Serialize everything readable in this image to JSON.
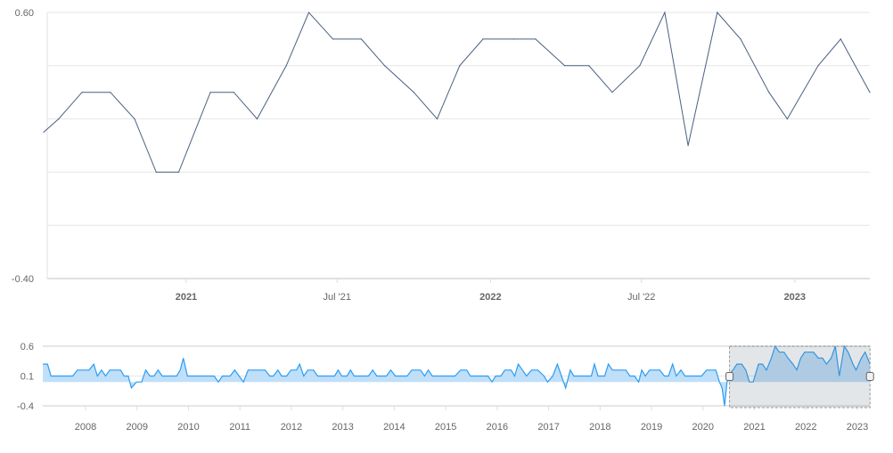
{
  "chart_data": [
    {
      "type": "line",
      "title": "",
      "xlabel": "",
      "ylabel": "",
      "ylim": [
        -0.4,
        0.6
      ],
      "xlim": [
        "2020-07-14",
        "2023-04-01"
      ],
      "grid": true,
      "ytick_labels": [
        "0.60",
        "-0.40"
      ],
      "ytick_values": [
        0.6,
        -0.4
      ],
      "grid_values": [
        0.6,
        0.4,
        0.2,
        0.0,
        -0.2,
        -0.4
      ],
      "xticks": [
        {
          "date": "2021-01-01",
          "label": "2021",
          "bold": true
        },
        {
          "date": "2021-07-01",
          "label": "Jul '21",
          "bold": false
        },
        {
          "date": "2022-01-01",
          "label": "2022",
          "bold": true
        },
        {
          "date": "2022-07-01",
          "label": "Jul '22",
          "bold": false
        },
        {
          "date": "2023-01-01",
          "label": "2023",
          "bold": true
        }
      ],
      "line_color": "#4a5f80",
      "series": [
        {
          "x": [
            "2020-07-14",
            "2020-08-01",
            "2020-08-29",
            "2020-10-02",
            "2020-10-31",
            "2020-11-26",
            "2020-12-23",
            "2021-01-30",
            "2021-02-27",
            "2021-03-27",
            "2021-05-01",
            "2021-05-28",
            "2021-06-26",
            "2021-07-30",
            "2021-08-27",
            "2021-10-01",
            "2021-10-29",
            "2021-11-25",
            "2021-12-23",
            "2022-01-29",
            "2022-02-24",
            "2022-03-31",
            "2022-04-29",
            "2022-05-27",
            "2022-06-29",
            "2022-07-29",
            "2022-08-26",
            "2022-09-30",
            "2022-10-28",
            "2022-12-01",
            "2022-12-23",
            "2023-01-29",
            "2023-02-25",
            "2023-04-01"
          ],
          "y": [
            0.15,
            0.2,
            0.3,
            0.3,
            0.2,
            0.0,
            0.0,
            0.3,
            0.3,
            0.2,
            0.4,
            0.6,
            0.5,
            0.5,
            0.4,
            0.3,
            0.2,
            0.4,
            0.5,
            0.5,
            0.5,
            0.4,
            0.4,
            0.3,
            0.4,
            0.6,
            0.1,
            0.6,
            0.5,
            0.3,
            0.2,
            0.4,
            0.5,
            0.3
          ]
        }
      ]
    },
    {
      "type": "area",
      "role": "navigator",
      "ylim": [
        -0.4,
        0.6
      ],
      "xlim": [
        2007.17,
        2023.25
      ],
      "ytick_labels": [
        "0.6",
        "0.1",
        "-0.4"
      ],
      "ytick_values": [
        0.6,
        0.1,
        -0.4
      ],
      "xtick_labels": [
        "2008",
        "2009",
        "2010",
        "2011",
        "2012",
        "2013",
        "2014",
        "2015",
        "2016",
        "2017",
        "2018",
        "2019",
        "2020",
        "2021",
        "2022",
        "2023"
      ],
      "line_color": "#2a9df4",
      "fill_color": "#b9dcf8",
      "selected_range": [
        "2020-07-14",
        "2023-04-01"
      ],
      "history": [
        [
          2007.17,
          0.3
        ],
        [
          2007.26,
          0.3
        ],
        [
          2007.33,
          0.1
        ],
        [
          2007.75,
          0.1
        ],
        [
          2007.84,
          0.2
        ],
        [
          2008.07,
          0.2
        ],
        [
          2008.16,
          0.3
        ],
        [
          2008.23,
          0.1
        ],
        [
          2008.31,
          0.2
        ],
        [
          2008.39,
          0.1
        ],
        [
          2008.47,
          0.2
        ],
        [
          2008.68,
          0.2
        ],
        [
          2008.75,
          0.1
        ],
        [
          2008.83,
          0.1
        ],
        [
          2008.89,
          -0.1
        ],
        [
          2008.99,
          0.0
        ],
        [
          2009.09,
          0.0
        ],
        [
          2009.17,
          0.2
        ],
        [
          2009.25,
          0.1
        ],
        [
          2009.33,
          0.1
        ],
        [
          2009.41,
          0.2
        ],
        [
          2009.49,
          0.1
        ],
        [
          2009.77,
          0.1
        ],
        [
          2009.84,
          0.2
        ],
        [
          2009.9,
          0.4
        ],
        [
          2009.98,
          0.1
        ],
        [
          2010.5,
          0.1
        ],
        [
          2010.58,
          0.0
        ],
        [
          2010.66,
          0.1
        ],
        [
          2010.81,
          0.1
        ],
        [
          2010.9,
          0.2
        ],
        [
          2011.07,
          0.0
        ],
        [
          2011.16,
          0.2
        ],
        [
          2011.49,
          0.2
        ],
        [
          2011.58,
          0.1
        ],
        [
          2011.65,
          0.1
        ],
        [
          2011.74,
          0.2
        ],
        [
          2011.81,
          0.1
        ],
        [
          2011.91,
          0.1
        ],
        [
          2011.99,
          0.2
        ],
        [
          2012.1,
          0.2
        ],
        [
          2012.16,
          0.3
        ],
        [
          2012.24,
          0.1
        ],
        [
          2012.32,
          0.2
        ],
        [
          2012.43,
          0.2
        ],
        [
          2012.51,
          0.1
        ],
        [
          2012.84,
          0.1
        ],
        [
          2012.91,
          0.2
        ],
        [
          2012.98,
          0.1
        ],
        [
          2013.08,
          0.1
        ],
        [
          2013.15,
          0.2
        ],
        [
          2013.22,
          0.1
        ],
        [
          2013.5,
          0.1
        ],
        [
          2013.58,
          0.2
        ],
        [
          2013.66,
          0.1
        ],
        [
          2013.85,
          0.1
        ],
        [
          2013.93,
          0.2
        ],
        [
          2014.02,
          0.1
        ],
        [
          2014.25,
          0.1
        ],
        [
          2014.34,
          0.2
        ],
        [
          2014.51,
          0.2
        ],
        [
          2014.59,
          0.1
        ],
        [
          2014.66,
          0.2
        ],
        [
          2014.74,
          0.1
        ],
        [
          2015.18,
          0.1
        ],
        [
          2015.29,
          0.2
        ],
        [
          2015.41,
          0.2
        ],
        [
          2015.48,
          0.1
        ],
        [
          2015.82,
          0.1
        ],
        [
          2015.9,
          0.0
        ],
        [
          2015.97,
          0.1
        ],
        [
          2016.07,
          0.1
        ],
        [
          2016.15,
          0.2
        ],
        [
          2016.27,
          0.2
        ],
        [
          2016.34,
          0.1
        ],
        [
          2016.41,
          0.3
        ],
        [
          2016.49,
          0.2
        ],
        [
          2016.57,
          0.1
        ],
        [
          2016.67,
          0.2
        ],
        [
          2016.79,
          0.2
        ],
        [
          2016.91,
          0.1
        ],
        [
          2016.98,
          0.0
        ],
        [
          2017.08,
          0.1
        ],
        [
          2017.17,
          0.3
        ],
        [
          2017.25,
          0.1
        ],
        [
          2017.33,
          -0.1
        ],
        [
          2017.42,
          0.2
        ],
        [
          2017.49,
          0.1
        ],
        [
          2017.83,
          0.1
        ],
        [
          2017.89,
          0.3
        ],
        [
          2017.96,
          0.1
        ],
        [
          2018.09,
          0.1
        ],
        [
          2018.16,
          0.3
        ],
        [
          2018.24,
          0.2
        ],
        [
          2018.5,
          0.2
        ],
        [
          2018.58,
          0.1
        ],
        [
          2018.67,
          0.1
        ],
        [
          2018.75,
          0.0
        ],
        [
          2018.81,
          0.2
        ],
        [
          2018.88,
          0.1
        ],
        [
          2018.96,
          0.2
        ],
        [
          2019.16,
          0.2
        ],
        [
          2019.25,
          0.1
        ],
        [
          2019.33,
          0.1
        ],
        [
          2019.41,
          0.3
        ],
        [
          2019.48,
          0.1
        ],
        [
          2019.57,
          0.2
        ],
        [
          2019.65,
          0.1
        ],
        [
          2019.97,
          0.1
        ],
        [
          2020.07,
          0.2
        ],
        [
          2020.25,
          0.2
        ],
        [
          2020.32,
          0.0
        ],
        [
          2020.37,
          -0.1
        ],
        [
          2020.42,
          -0.4
        ],
        [
          2020.48,
          0.1
        ]
      ]
    }
  ]
}
